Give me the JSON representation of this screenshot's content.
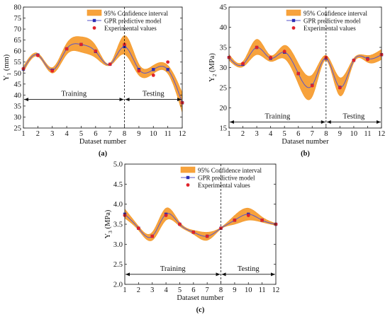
{
  "chart_data": [
    {
      "type": "line",
      "panel_label": "(a)",
      "xlabel": "Dataset number",
      "ylabel": [
        "Y",
        "1",
        " (mm)"
      ],
      "xlim": [
        1,
        12
      ],
      "ylim": [
        25,
        80
      ],
      "yticks": [
        25,
        30,
        35,
        40,
        45,
        50,
        55,
        60,
        65,
        70,
        75,
        80
      ],
      "x": [
        1,
        2,
        3,
        4,
        5,
        6,
        7,
        8,
        9,
        10,
        11,
        12
      ],
      "legend": [
        "95% Confidence interval",
        "GPR predictive model",
        "Experimental values"
      ],
      "legend_position": "top-right",
      "split_at": 8,
      "regions": [
        "Training",
        "Testing"
      ],
      "region_arrow_y": 38,
      "predicted": [
        51.8,
        58.2,
        51.3,
        61.0,
        63.0,
        59.8,
        54.0,
        62.0,
        51.6,
        51.6,
        51.6,
        36.5
      ],
      "lower": [
        50.5,
        57.5,
        50.0,
        58.5,
        59.5,
        57.0,
        53.5,
        58.5,
        49.0,
        49.8,
        49.8,
        32.0
      ],
      "upper": [
        53.0,
        59.0,
        52.5,
        63.5,
        66.5,
        62.5,
        54.5,
        67.0,
        54.0,
        53.5,
        53.5,
        41.0
      ],
      "experimental": [
        52.0,
        58.0,
        51.0,
        61.0,
        63.0,
        60.0,
        54.0,
        63.0,
        51.0,
        49.0,
        55.0,
        36.5
      ]
    },
    {
      "type": "line",
      "panel_label": "(b)",
      "xlabel": "Dataset number",
      "ylabel": [
        "Y",
        "2",
        " (MPa)"
      ],
      "xlim": [
        1,
        12
      ],
      "ylim": [
        15,
        45
      ],
      "yticks": [
        15,
        20,
        25,
        30,
        35,
        40,
        45
      ],
      "x": [
        1,
        2,
        3,
        4,
        5,
        6,
        7,
        8,
        9,
        10,
        11,
        12
      ],
      "legend": [
        "95% Confidence interval",
        "GPR predictive model",
        "Experimental values"
      ],
      "legend_position": "top-right",
      "split_at": 8,
      "regions": [
        "Training",
        "Testing"
      ],
      "region_arrow_y": 16.5,
      "predicted": [
        32.5,
        30.8,
        35.0,
        32.3,
        33.8,
        28.5,
        25.6,
        32.3,
        25.1,
        31.8,
        32.2,
        33.2
      ],
      "lower": [
        31.8,
        30.2,
        33.2,
        31.5,
        32.2,
        26.0,
        22.8,
        31.8,
        23.0,
        31.2,
        31.3,
        32.0
      ],
      "upper": [
        33.3,
        31.5,
        37.0,
        33.0,
        35.5,
        31.0,
        28.2,
        33.0,
        27.5,
        32.3,
        33.0,
        34.5
      ],
      "experimental": [
        32.5,
        31.0,
        35.0,
        32.5,
        34.0,
        28.5,
        25.5,
        32.5,
        25.0,
        31.8,
        32.0,
        33.2
      ]
    },
    {
      "type": "line",
      "panel_label": "(c)",
      "xlabel": "Dataset number",
      "ylabel": [
        "Y",
        "3",
        " (MPa)"
      ],
      "xlim": [
        1,
        12
      ],
      "ylim": [
        2.0,
        5.0
      ],
      "yticks": [
        2.0,
        2.5,
        3.0,
        3.5,
        4.0,
        4.5,
        5.0
      ],
      "x": [
        1,
        2,
        3,
        4,
        5,
        6,
        7,
        8,
        9,
        10,
        11,
        12
      ],
      "legend": [
        "95% Confidence interval",
        "GPR predictive model",
        "Experimental values"
      ],
      "legend_position": "top-right",
      "split_at": 8,
      "regions": [
        "Training",
        "Testing"
      ],
      "region_arrow_y": 2.25,
      "predicted": [
        3.75,
        3.4,
        3.2,
        3.75,
        3.5,
        3.3,
        3.2,
        3.4,
        3.6,
        3.75,
        3.6,
        3.5
      ],
      "lower": [
        3.65,
        3.35,
        3.1,
        3.6,
        3.45,
        3.25,
        3.1,
        3.38,
        3.5,
        3.6,
        3.55,
        3.47
      ],
      "upper": [
        3.88,
        3.45,
        3.3,
        3.9,
        3.55,
        3.35,
        3.3,
        3.42,
        3.72,
        3.9,
        3.68,
        3.52
      ],
      "experimental": [
        3.72,
        3.4,
        3.2,
        3.72,
        3.5,
        3.3,
        3.2,
        3.4,
        3.6,
        3.72,
        3.6,
        3.5
      ]
    }
  ]
}
